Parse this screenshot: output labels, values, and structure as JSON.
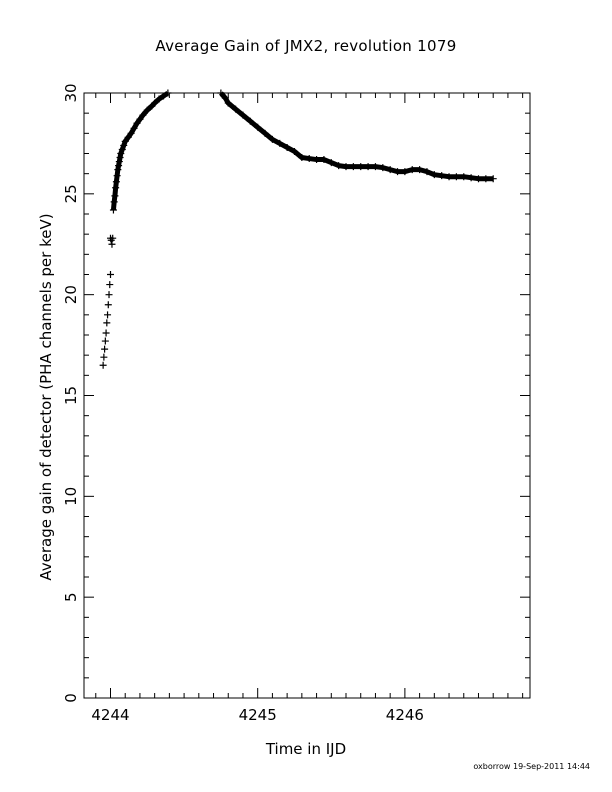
{
  "chart_data": {
    "type": "scatter",
    "title": "Average Gain of JMX2, revolution 1079",
    "xlabel": "Time in IJD",
    "ylabel": "Average gain of detector (PHA channels per keV)",
    "xlim": [
      4243.82,
      4246.85
    ],
    "ylim": [
      0,
      30
    ],
    "xticks": [
      4244,
      4245,
      4246
    ],
    "yticks": [
      0,
      5,
      10,
      15,
      20,
      25,
      30
    ],
    "grid": false,
    "marker": "+",
    "series": [
      {
        "points": [
          [
            4243.95,
            16.5
          ],
          [
            4243.955,
            16.9
          ],
          [
            4243.96,
            17.3
          ],
          [
            4243.965,
            17.7
          ],
          [
            4243.97,
            18.1
          ],
          [
            4243.975,
            18.6
          ],
          [
            4243.98,
            19.0
          ],
          [
            4243.985,
            19.5
          ],
          [
            4243.99,
            20.0
          ],
          [
            4243.995,
            20.5
          ],
          [
            4244.0,
            21.0
          ],
          [
            4244.0,
            22.8
          ],
          [
            4244.005,
            22.7
          ],
          [
            4244.01,
            22.5
          ],
          [
            4244.015,
            22.8
          ],
          [
            4244.02,
            24.2
          ],
          [
            4244.025,
            24.6
          ],
          [
            4244.03,
            24.9
          ],
          [
            4244.035,
            25.3
          ],
          [
            4244.04,
            25.6
          ],
          [
            4244.045,
            25.9
          ],
          [
            4244.05,
            26.2
          ],
          [
            4244.055,
            26.4
          ],
          [
            4244.06,
            26.6
          ],
          [
            4244.065,
            26.8
          ],
          [
            4244.07,
            27.0
          ],
          [
            4244.08,
            27.2
          ],
          [
            4244.09,
            27.4
          ],
          [
            4244.1,
            27.6
          ],
          [
            4244.12,
            27.8
          ],
          [
            4244.14,
            28.0
          ],
          [
            4244.16,
            28.25
          ],
          [
            4244.18,
            28.5
          ],
          [
            4244.2,
            28.7
          ],
          [
            4244.22,
            28.9
          ],
          [
            4244.25,
            29.15
          ],
          [
            4244.28,
            29.35
          ],
          [
            4244.3,
            29.5
          ],
          [
            4244.33,
            29.7
          ],
          [
            4244.36,
            29.85
          ],
          [
            4244.39,
            30.0
          ],
          [
            4244.75,
            30.0
          ],
          [
            4244.78,
            29.75
          ],
          [
            4244.8,
            29.5
          ],
          [
            4244.85,
            29.2
          ],
          [
            4244.9,
            28.9
          ],
          [
            4244.95,
            28.6
          ],
          [
            4245.0,
            28.3
          ],
          [
            4245.05,
            28.0
          ],
          [
            4245.1,
            27.7
          ],
          [
            4245.15,
            27.5
          ],
          [
            4245.2,
            27.3
          ],
          [
            4245.25,
            27.1
          ],
          [
            4245.3,
            26.8
          ],
          [
            4245.35,
            26.75
          ],
          [
            4245.4,
            26.7
          ],
          [
            4245.45,
            26.7
          ],
          [
            4245.5,
            26.55
          ],
          [
            4245.55,
            26.4
          ],
          [
            4245.6,
            26.35
          ],
          [
            4245.65,
            26.35
          ],
          [
            4245.7,
            26.35
          ],
          [
            4245.75,
            26.35
          ],
          [
            4245.8,
            26.35
          ],
          [
            4245.85,
            26.3
          ],
          [
            4245.9,
            26.2
          ],
          [
            4245.95,
            26.1
          ],
          [
            4246.0,
            26.1
          ],
          [
            4246.05,
            26.2
          ],
          [
            4246.1,
            26.2
          ],
          [
            4246.15,
            26.1
          ],
          [
            4246.2,
            25.95
          ],
          [
            4246.25,
            25.9
          ],
          [
            4246.3,
            25.85
          ],
          [
            4246.35,
            25.85
          ],
          [
            4246.4,
            25.85
          ],
          [
            4246.45,
            25.8
          ],
          [
            4246.5,
            25.75
          ],
          [
            4246.55,
            25.75
          ],
          [
            4246.6,
            25.75
          ]
        ]
      }
    ]
  },
  "footer": "oxborrow 19-Sep-2011 14:44"
}
